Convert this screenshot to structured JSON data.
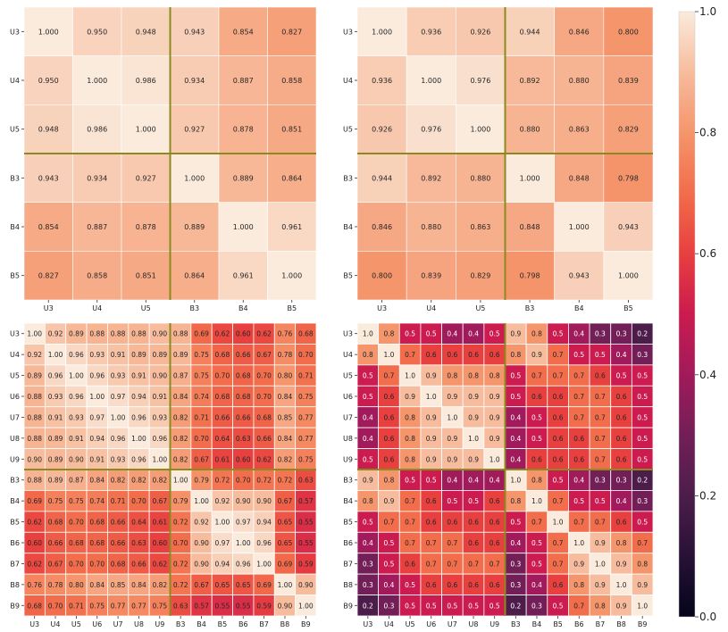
{
  "chart_data": [
    {
      "type": "heatmap",
      "name": "top-left",
      "rows": [
        "U3",
        "U4",
        "U5",
        "B3",
        "B4",
        "B5"
      ],
      "cols": [
        "U3",
        "U4",
        "U5",
        "B3",
        "B4",
        "B5"
      ],
      "decimals": 3,
      "values": [
        [
          1.0,
          0.95,
          0.948,
          0.943,
          0.854,
          0.827
        ],
        [
          0.95,
          1.0,
          0.986,
          0.934,
          0.887,
          0.858
        ],
        [
          0.948,
          0.986,
          1.0,
          0.927,
          0.878,
          0.851
        ],
        [
          0.943,
          0.934,
          0.927,
          1.0,
          0.889,
          0.864
        ],
        [
          0.854,
          0.887,
          0.878,
          0.889,
          1.0,
          0.961
        ],
        [
          0.827,
          0.858,
          0.851,
          0.864,
          0.961,
          1.0
        ]
      ],
      "separator_after_index": 3,
      "vmin": 0.0,
      "vmax": 1.0
    },
    {
      "type": "heatmap",
      "name": "top-right",
      "rows": [
        "U3",
        "U4",
        "U5",
        "B3",
        "B4",
        "B5"
      ],
      "cols": [
        "U3",
        "U4",
        "U5",
        "B3",
        "B4",
        "B5"
      ],
      "decimals": 3,
      "values": [
        [
          1.0,
          0.936,
          0.926,
          0.944,
          0.846,
          0.8
        ],
        [
          0.936,
          1.0,
          0.976,
          0.892,
          0.88,
          0.839
        ],
        [
          0.926,
          0.976,
          1.0,
          0.88,
          0.863,
          0.829
        ],
        [
          0.944,
          0.892,
          0.88,
          1.0,
          0.848,
          0.798
        ],
        [
          0.846,
          0.88,
          0.863,
          0.848,
          1.0,
          0.943
        ],
        [
          0.8,
          0.839,
          0.829,
          0.798,
          0.943,
          1.0
        ]
      ],
      "separator_after_index": 3,
      "vmin": 0.0,
      "vmax": 1.0
    },
    {
      "type": "heatmap",
      "name": "bottom-left",
      "rows": [
        "U3",
        "U4",
        "U5",
        "U6",
        "U7",
        "U8",
        "U9",
        "B3",
        "B4",
        "B5",
        "B6",
        "B7",
        "B8",
        "B9"
      ],
      "cols": [
        "U3",
        "U4",
        "U5",
        "U6",
        "U7",
        "U8",
        "U9",
        "B3",
        "B4",
        "B5",
        "B6",
        "B7",
        "B8",
        "B9"
      ],
      "decimals": 2,
      "values": [
        [
          1.0,
          0.92,
          0.89,
          0.88,
          0.88,
          0.88,
          0.9,
          0.88,
          0.69,
          0.62,
          0.6,
          0.62,
          0.76,
          0.68
        ],
        [
          0.92,
          1.0,
          0.96,
          0.93,
          0.91,
          0.89,
          0.89,
          0.89,
          0.75,
          0.68,
          0.66,
          0.67,
          0.78,
          0.7
        ],
        [
          0.89,
          0.96,
          1.0,
          0.96,
          0.93,
          0.91,
          0.9,
          0.87,
          0.75,
          0.7,
          0.68,
          0.7,
          0.8,
          0.71
        ],
        [
          0.88,
          0.93,
          0.96,
          1.0,
          0.97,
          0.94,
          0.91,
          0.84,
          0.74,
          0.68,
          0.68,
          0.7,
          0.84,
          0.75
        ],
        [
          0.88,
          0.91,
          0.93,
          0.97,
          1.0,
          0.96,
          0.93,
          0.82,
          0.71,
          0.66,
          0.66,
          0.68,
          0.85,
          0.77
        ],
        [
          0.88,
          0.89,
          0.91,
          0.94,
          0.96,
          1.0,
          0.96,
          0.82,
          0.7,
          0.64,
          0.63,
          0.66,
          0.84,
          0.77
        ],
        [
          0.9,
          0.89,
          0.9,
          0.91,
          0.93,
          0.96,
          1.0,
          0.82,
          0.67,
          0.61,
          0.6,
          0.62,
          0.82,
          0.75
        ],
        [
          0.88,
          0.89,
          0.87,
          0.84,
          0.82,
          0.82,
          0.82,
          1.0,
          0.79,
          0.72,
          0.7,
          0.72,
          0.72,
          0.63
        ],
        [
          0.69,
          0.75,
          0.75,
          0.74,
          0.71,
          0.7,
          0.67,
          0.79,
          1.0,
          0.92,
          0.9,
          0.9,
          0.67,
          0.57
        ],
        [
          0.62,
          0.68,
          0.7,
          0.68,
          0.66,
          0.64,
          0.61,
          0.72,
          0.92,
          1.0,
          0.97,
          0.94,
          0.65,
          0.55
        ],
        [
          0.6,
          0.66,
          0.68,
          0.68,
          0.66,
          0.63,
          0.6,
          0.7,
          0.9,
          0.97,
          1.0,
          0.96,
          0.65,
          0.55
        ],
        [
          0.62,
          0.67,
          0.7,
          0.7,
          0.68,
          0.66,
          0.62,
          0.72,
          0.9,
          0.94,
          0.96,
          1.0,
          0.69,
          0.59
        ],
        [
          0.76,
          0.78,
          0.8,
          0.84,
          0.85,
          0.84,
          0.82,
          0.72,
          0.67,
          0.65,
          0.65,
          0.69,
          1.0,
          0.9
        ],
        [
          0.68,
          0.7,
          0.71,
          0.75,
          0.77,
          0.77,
          0.75,
          0.63,
          0.57,
          0.55,
          0.55,
          0.59,
          0.9,
          1.0
        ]
      ],
      "display_labels": [
        [
          "1.00",
          "0.92",
          "0.89",
          "0.88",
          "0.88",
          "0.88",
          "0.90",
          "0.88",
          "0.69",
          "0.62",
          "0.60",
          "0.62",
          "0.76",
          "0.68"
        ],
        [
          "0.92",
          "1.00",
          "0.96",
          "0.93",
          "0.91",
          "0.89",
          "0.89",
          "0.89",
          "0.75",
          "0.68",
          "0.66",
          "0.67",
          "0.78",
          "0.70"
        ],
        [
          "0.89",
          "0.96",
          "1.00",
          "0.96",
          "0.93",
          "0.91",
          "0.90",
          "0.87",
          "0.75",
          "0.70",
          "0.68",
          "0.70",
          "0.80",
          "0.71"
        ],
        [
          "0.88",
          "0.93",
          "0.96",
          "1.00",
          "0.97",
          "0.94",
          "0.91",
          "0.84",
          "0.74",
          "0.68",
          "0.68",
          "0.70",
          "0.84",
          "0.75"
        ],
        [
          "0.88",
          "0.91",
          "0.93",
          "0.97",
          "1.00",
          "0.96",
          "0.93",
          "0.82",
          "0.71",
          "0.66",
          "0.66",
          "0.68",
          "0.85",
          "0.77"
        ],
        [
          "0.88",
          "0.89",
          "0.91",
          "0.94",
          "0.96",
          "1.00",
          "0.96",
          "0.82",
          "0.70",
          "0.64",
          "0.63",
          "0.66",
          "0.84",
          "0.77"
        ],
        [
          "0.90",
          "0.89",
          "0.90",
          "0.91",
          "0.93",
          "0.96",
          "1.00",
          "0.82",
          "0.67",
          "0.61",
          "0.60",
          "0.62",
          "0.82",
          "0.75"
        ],
        [
          "0.88",
          "0.89",
          "0.87",
          "0.84",
          "0.82",
          "0.82",
          "0.82",
          "1.00",
          "0.79",
          "0.72",
          "0.70",
          "0.72",
          "0.72",
          "0.63"
        ],
        [
          "0.69",
          "0.75",
          "0.75",
          "0.74",
          "0.71",
          "0.70",
          "0.67",
          "0.79",
          "1.00",
          "0.92",
          "0.90",
          "0.90",
          "0.67",
          "0.57"
        ],
        [
          "0.62",
          "0.68",
          "0.70",
          "0.68",
          "0.66",
          "0.64",
          "0.61",
          "0.72",
          "0.92",
          "1.00",
          "0.97",
          "0.94",
          "0.65",
          "0.55"
        ],
        [
          "0.60",
          "0.66",
          "0.68",
          "0.68",
          "0.66",
          "0.63",
          "0.60",
          "0.70",
          "0.90",
          "0.97",
          "1.00",
          "0.96",
          "0.65",
          "0.55"
        ],
        [
          "0.62",
          "0.67",
          "0.70",
          "0.70",
          "0.68",
          "0.66",
          "0.62",
          "0.72",
          "0.90",
          "0.94",
          "0.96",
          "1.00",
          "0.69",
          "0.59"
        ],
        [
          "0.76",
          "0.78",
          "0.80",
          "0.84",
          "0.85",
          "0.84",
          "0.82",
          "0.72",
          "0.67",
          "0.65",
          "0.65",
          "0.69",
          "1.00",
          "0.90"
        ],
        [
          "0.68",
          "0.70",
          "0.71",
          "0.75",
          "0.77",
          "0.77",
          "0.75",
          "0.63",
          "0.57",
          "0.55",
          "0.55",
          "0.59",
          "0.90",
          "1.00"
        ]
      ],
      "separator_after_index": 7,
      "vmin": 0.0,
      "vmax": 1.0
    },
    {
      "type": "heatmap",
      "name": "bottom-right",
      "rows": [
        "U3",
        "U4",
        "U5",
        "U6",
        "U7",
        "U8",
        "U9",
        "B3",
        "B4",
        "B5",
        "B6",
        "B7",
        "B8",
        "B9"
      ],
      "cols": [
        "U3",
        "U4",
        "U5",
        "U6",
        "U7",
        "U8",
        "U9",
        "B3",
        "B4",
        "B5",
        "B6",
        "B7",
        "B8",
        "B9"
      ],
      "decimals": 1,
      "values": [
        [
          1.0,
          0.8,
          0.5,
          0.5,
          0.4,
          0.4,
          0.5,
          0.9,
          0.8,
          0.5,
          0.4,
          0.3,
          0.3,
          0.2
        ],
        [
          0.8,
          1.0,
          0.7,
          0.6,
          0.6,
          0.6,
          0.6,
          0.8,
          0.9,
          0.7,
          0.5,
          0.5,
          0.4,
          0.3
        ],
        [
          0.5,
          0.7,
          1.0,
          0.9,
          0.8,
          0.8,
          0.8,
          0.5,
          0.7,
          0.7,
          0.7,
          0.6,
          0.5,
          0.5
        ],
        [
          0.5,
          0.6,
          0.9,
          1.0,
          0.9,
          0.9,
          0.9,
          0.5,
          0.6,
          0.6,
          0.7,
          0.7,
          0.6,
          0.5
        ],
        [
          0.4,
          0.6,
          0.8,
          0.9,
          1.0,
          0.9,
          0.9,
          0.4,
          0.5,
          0.6,
          0.7,
          0.7,
          0.6,
          0.5
        ],
        [
          0.4,
          0.6,
          0.8,
          0.9,
          0.9,
          1.0,
          0.9,
          0.4,
          0.5,
          0.6,
          0.6,
          0.7,
          0.6,
          0.5
        ],
        [
          0.5,
          0.6,
          0.8,
          0.9,
          0.9,
          0.9,
          1.0,
          0.4,
          0.6,
          0.6,
          0.6,
          0.7,
          0.6,
          0.5
        ],
        [
          0.9,
          0.8,
          0.5,
          0.5,
          0.4,
          0.4,
          0.4,
          1.0,
          0.8,
          0.5,
          0.4,
          0.3,
          0.3,
          0.2
        ],
        [
          0.8,
          0.9,
          0.7,
          0.6,
          0.5,
          0.5,
          0.6,
          0.8,
          1.0,
          0.7,
          0.5,
          0.5,
          0.4,
          0.3
        ],
        [
          0.5,
          0.7,
          0.7,
          0.6,
          0.6,
          0.6,
          0.6,
          0.5,
          0.7,
          1.0,
          0.7,
          0.7,
          0.6,
          0.5
        ],
        [
          0.4,
          0.5,
          0.7,
          0.7,
          0.7,
          0.6,
          0.6,
          0.4,
          0.5,
          0.7,
          1.0,
          0.9,
          0.8,
          0.7
        ],
        [
          0.3,
          0.5,
          0.6,
          0.7,
          0.7,
          0.7,
          0.7,
          0.3,
          0.5,
          0.7,
          0.9,
          1.0,
          0.9,
          0.8
        ],
        [
          0.3,
          0.4,
          0.5,
          0.6,
          0.6,
          0.6,
          0.6,
          0.3,
          0.4,
          0.6,
          0.8,
          0.9,
          1.0,
          0.9
        ],
        [
          0.2,
          0.3,
          0.5,
          0.5,
          0.5,
          0.5,
          0.5,
          0.2,
          0.3,
          0.5,
          0.7,
          0.8,
          0.9,
          1.0
        ]
      ],
      "display_labels": [
        [
          "1.0",
          "0.8",
          "0.5",
          "0.5",
          "0.4",
          "0.4",
          "0.5",
          "0.9",
          "0.8",
          "0.5",
          "0.4",
          "0.3",
          "0.3",
          "0.2"
        ],
        [
          "0.8",
          "1.0",
          "0.7",
          "0.6",
          "0.6",
          "0.6",
          "0.6",
          "0.8",
          "0.9",
          "0.7",
          "0.5",
          "0.5",
          "0.4",
          "0.3"
        ],
        [
          "0.5",
          "0.7",
          "1.0",
          "0.9",
          "0.8",
          "0.8",
          "0.8",
          "0.5",
          "0.7",
          "0.7",
          "0.7",
          "0.6",
          "0.5",
          "0.5"
        ],
        [
          "0.5",
          "0.6",
          "0.9",
          "1.0",
          "0.9",
          "0.9",
          "0.9",
          "0.5",
          "0.6",
          "0.6",
          "0.7",
          "0.7",
          "0.6",
          "0.5"
        ],
        [
          "0.4",
          "0.6",
          "0.8",
          "0.9",
          "1.0",
          "0.9",
          "0.9",
          "0.4",
          "0.5",
          "0.6",
          "0.7",
          "0.7",
          "0.6",
          "0.5"
        ],
        [
          "0.4",
          "0.6",
          "0.8",
          "0.9",
          "0.9",
          "1.0",
          "0.9",
          "0.4",
          "0.5",
          "0.6",
          "0.6",
          "0.7",
          "0.6",
          "0.5"
        ],
        [
          "0.5",
          "0.6",
          "0.8",
          "0.9",
          "0.9",
          "0.9",
          "1.0",
          "0.4",
          "0.6",
          "0.6",
          "0.6",
          "0.7",
          "0.6",
          "0.5"
        ],
        [
          "0.9",
          "0.8",
          "0.5",
          "0.5",
          "0.4",
          "0.4",
          "0.4",
          "1.0",
          "0.8",
          "0.5",
          "0.4",
          "0.3",
          "0.3",
          "0.2"
        ],
        [
          "0.8",
          "0.9",
          "0.7",
          "0.6",
          "0.5",
          "0.5",
          "0.6",
          "0.8",
          "1.0",
          "0.7",
          "0.5",
          "0.5",
          "0.4",
          "0.3"
        ],
        [
          "0.5",
          "0.7",
          "0.7",
          "0.6",
          "0.6",
          "0.6",
          "0.6",
          "0.5",
          "0.7",
          "1.0",
          "0.7",
          "0.7",
          "0.6",
          "0.5"
        ],
        [
          "0.4",
          "0.5",
          "0.7",
          "0.7",
          "0.7",
          "0.6",
          "0.6",
          "0.4",
          "0.5",
          "0.7",
          "1.0",
          "0.9",
          "0.8",
          "0.7"
        ],
        [
          "0.3",
          "0.5",
          "0.6",
          "0.7",
          "0.7",
          "0.7",
          "0.7",
          "0.3",
          "0.5",
          "0.7",
          "0.9",
          "1.0",
          "0.9",
          "0.8"
        ],
        [
          "0.3",
          "0.4",
          "0.5",
          "0.6",
          "0.6",
          "0.6",
          "0.6",
          "0.3",
          "0.4",
          "0.6",
          "0.8",
          "0.9",
          "1.0",
          "0.9"
        ],
        [
          "0.2",
          "0.3",
          "0.5",
          "0.5",
          "0.5",
          "0.5",
          "0.5",
          "0.2",
          "0.3",
          "0.5",
          "0.7",
          "0.8",
          "0.9",
          "1.0"
        ]
      ],
      "separator_after_index": 7,
      "vmin": 0.0,
      "vmax": 1.0
    }
  ],
  "colorbar": {
    "ticks": [
      1.0,
      0.8,
      0.6,
      0.4,
      0.2,
      0.0
    ],
    "tick_labels": [
      "1.0",
      "0.8",
      "0.6",
      "0.4",
      "0.2",
      "0.0"
    ],
    "vmin": 0.0,
    "vmax": 1.0,
    "colormap": "rocket"
  },
  "colors": {
    "separator": "#8b8a1f",
    "cell_gap": "#ffffff",
    "dark_text": "#262626",
    "light_text": "#ffffff"
  }
}
